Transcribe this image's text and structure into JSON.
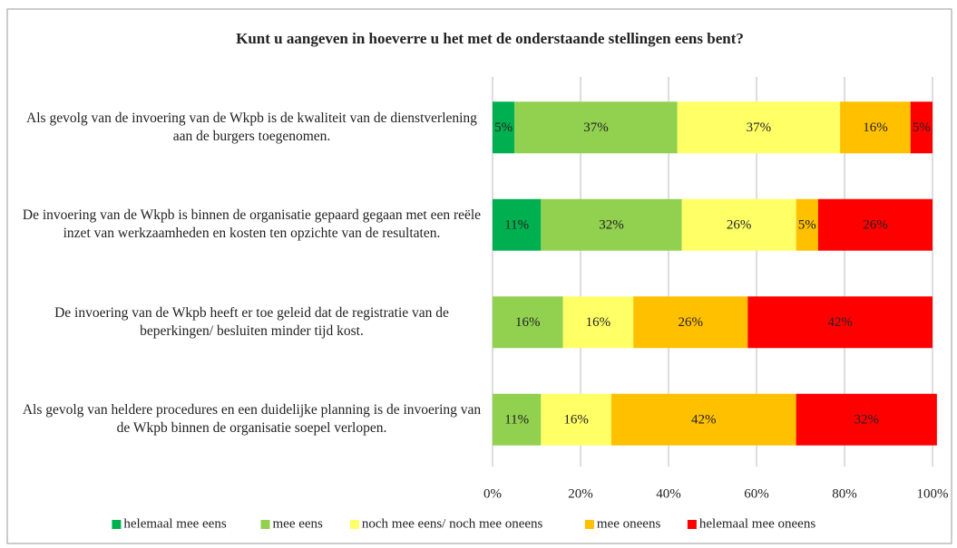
{
  "chart_data": {
    "type": "stacked_bar_horizontal",
    "title": "Kunt u aangeven in hoeverre u het met de onderstaande stellingen eens bent?",
    "categories": [
      "Als gevolg van de invoering van de Wkpb is de kwaliteit van de dienstverlening aan de burgers toegenomen.",
      "De invoering van de Wkpb is binnen de organisatie gepaard gegaan met een reële inzet van werkzaamheden en kosten ten opzichte van de resultaten.",
      "De invoering van de Wkpb heeft er toe geleid dat de registratie van de beperkingen/ besluiten minder tijd kost.",
      "Als gevolg van heldere procedures en een duidelijke planning is de invoering van de Wkpb binnen de organisatie soepel verlopen."
    ],
    "series": [
      {
        "name": "helemaal mee eens",
        "color": "#00b050",
        "values": [
          5,
          11,
          null,
          null
        ],
        "value_labels": [
          "5%",
          "11%",
          null,
          null
        ]
      },
      {
        "name": "mee eens",
        "color": "#92d050",
        "values": [
          37,
          32,
          16,
          11
        ],
        "value_labels": [
          "37%",
          "32%",
          "16%",
          "11%"
        ]
      },
      {
        "name": "noch mee eens/ noch mee oneens",
        "color": "#ffff66",
        "values": [
          37,
          26,
          16,
          16
        ],
        "value_labels": [
          "37%",
          "26%",
          "16%",
          "16%"
        ]
      },
      {
        "name": "mee oneens",
        "color": "#ffc000",
        "values": [
          16,
          5,
          26,
          42
        ],
        "value_labels": [
          "16%",
          "5%",
          "26%",
          "42%"
        ]
      },
      {
        "name": "helemaal mee oneens",
        "color": "#ff0000",
        "values": [
          5,
          26,
          42,
          32
        ],
        "value_labels": [
          "5%",
          "26%",
          "42%",
          "32%"
        ]
      }
    ],
    "xlim": [
      0,
      100
    ],
    "xticks": [
      {
        "value": 0,
        "label": "0%"
      },
      {
        "value": 20,
        "label": "20%"
      },
      {
        "value": 40,
        "label": "40%"
      },
      {
        "value": 60,
        "label": "60%"
      },
      {
        "value": 80,
        "label": "80%"
      },
      {
        "value": 100,
        "label": "100%"
      }
    ],
    "grid": true,
    "legend": "bottom"
  }
}
